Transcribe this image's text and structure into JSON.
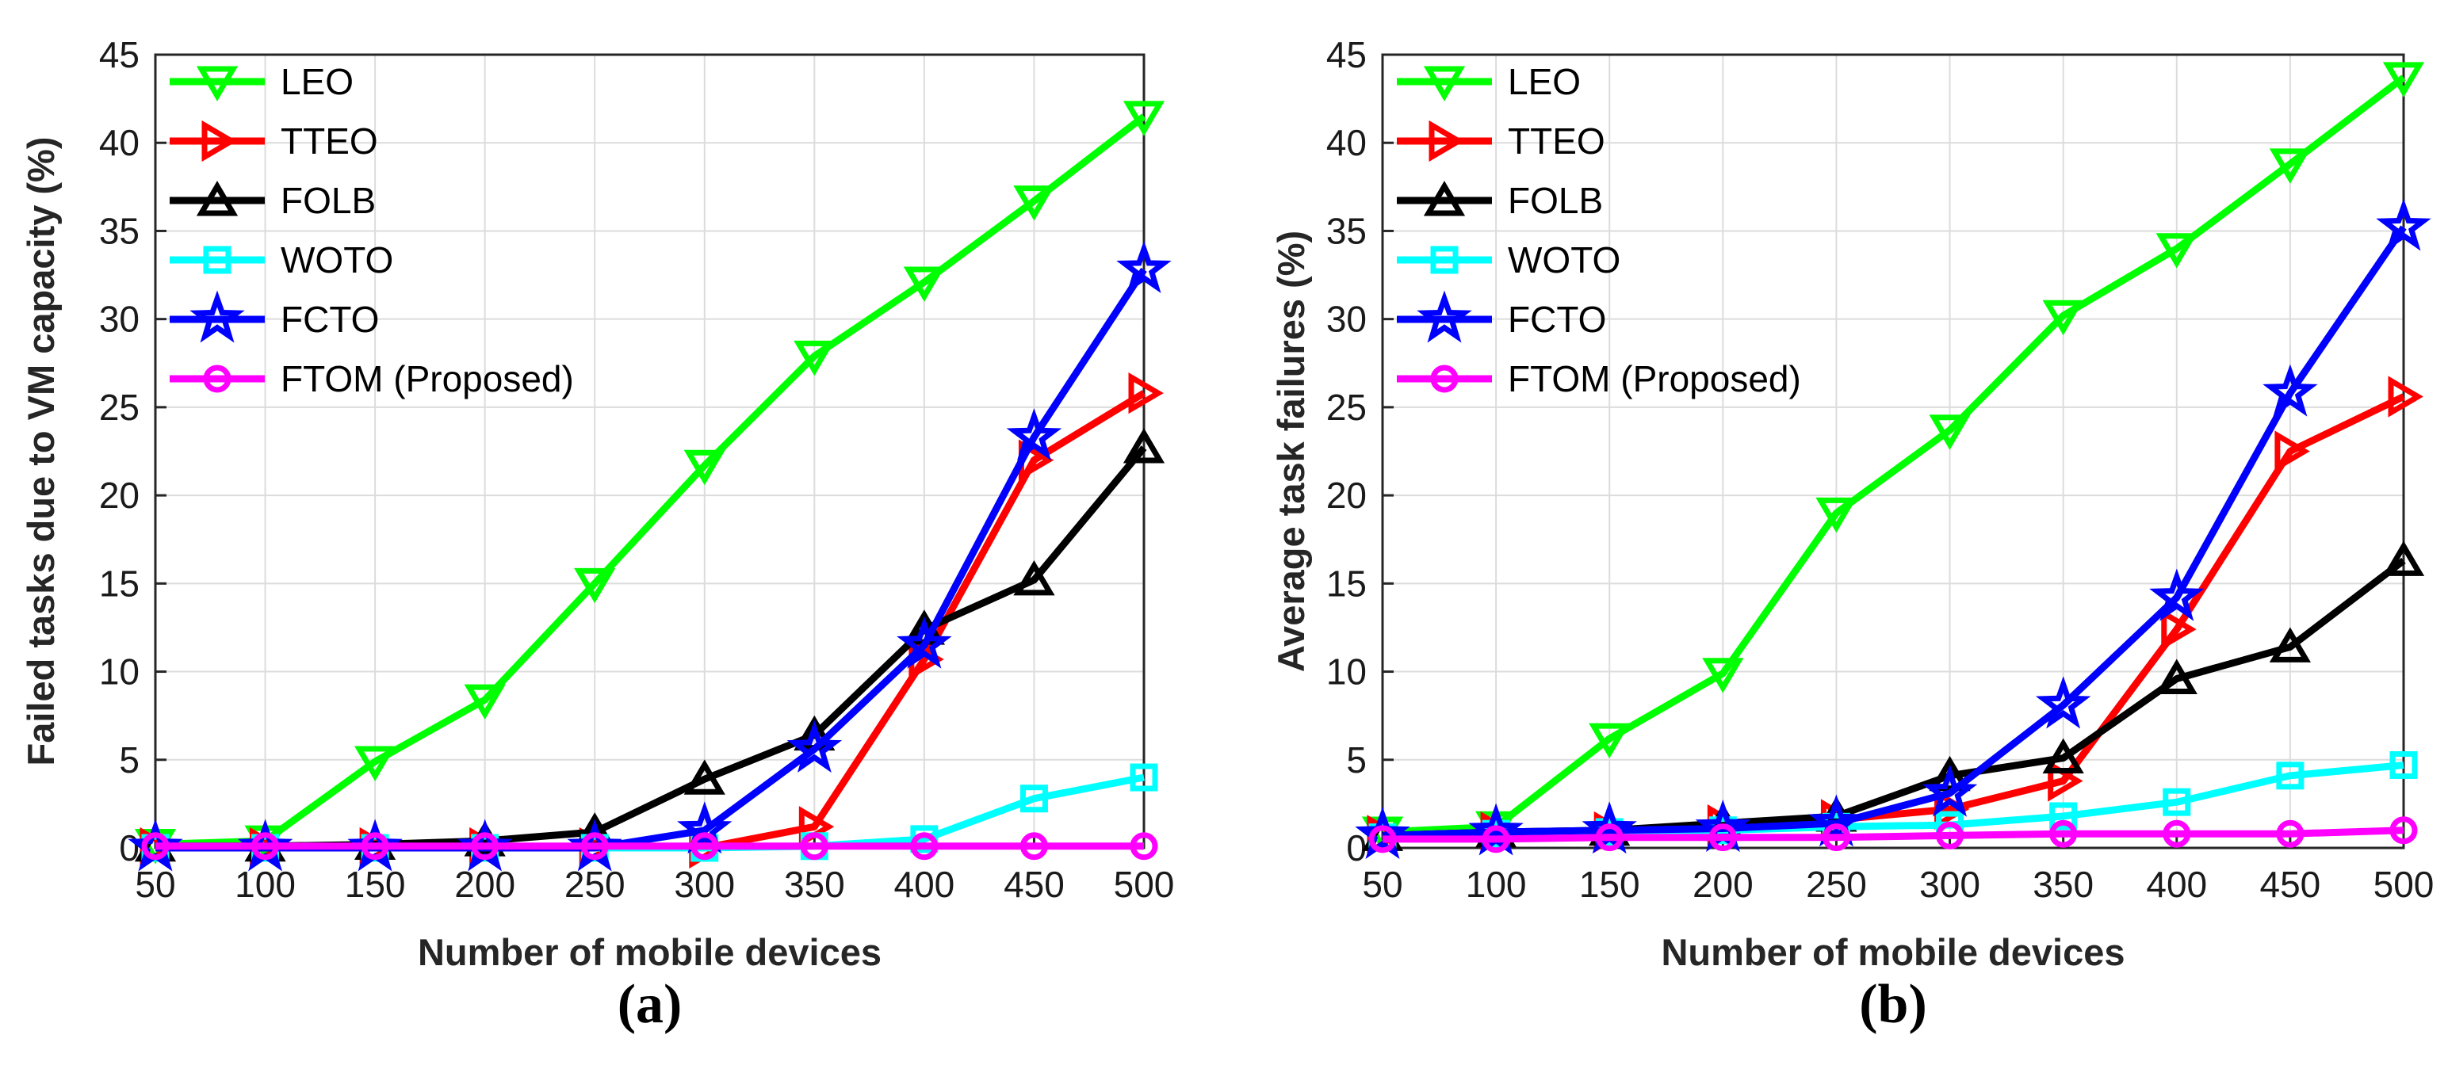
{
  "chart_data": [
    {
      "type": "line",
      "panel_label": "(a)",
      "xlabel": "Number of mobile devices",
      "ylabel": "Failed tasks due to VM capacity (%)",
      "x": [
        50,
        100,
        150,
        200,
        250,
        300,
        350,
        400,
        450,
        500
      ],
      "xticks": [
        "50",
        "100",
        "150",
        "200",
        "250",
        "300",
        "350",
        "400",
        "450",
        "500"
      ],
      "yticks": [
        "0",
        "5",
        "10",
        "15",
        "20",
        "25",
        "30",
        "35",
        "40",
        "45"
      ],
      "ylim": [
        0,
        45
      ],
      "grid": true,
      "legend_position": "top-left",
      "series": [
        {
          "name": "LEO",
          "color": "#00ff00",
          "marker": "triangle-down",
          "values": [
            0.2,
            0.4,
            4.9,
            8.4,
            15.0,
            21.7,
            27.9,
            32.1,
            36.7,
            41.5
          ]
        },
        {
          "name": "TTEO",
          "color": "#ff0000",
          "marker": "triangle-right",
          "values": [
            0.0,
            0.0,
            0.0,
            0.0,
            0.0,
            0.0,
            1.2,
            10.7,
            22.0,
            25.8
          ]
        },
        {
          "name": "FOLB",
          "color": "#000000",
          "marker": "triangle-up",
          "values": [
            0.1,
            0.1,
            0.2,
            0.4,
            0.9,
            3.9,
            6.4,
            12.4,
            15.2,
            22.7
          ]
        },
        {
          "name": "WOTO",
          "color": "#00ffff",
          "marker": "square",
          "values": [
            0.0,
            0.0,
            0.0,
            0.0,
            0.0,
            0.0,
            0.1,
            0.5,
            2.8,
            4.0
          ]
        },
        {
          "name": "FCTO",
          "color": "#0000ff",
          "marker": "star",
          "values": [
            0.0,
            0.0,
            0.0,
            0.0,
            0.0,
            1.0,
            5.6,
            11.5,
            23.3,
            32.8
          ]
        },
        {
          "name": "FTOM (Proposed)",
          "color": "#ff00ff",
          "marker": "circle",
          "values": [
            0.1,
            0.1,
            0.1,
            0.1,
            0.1,
            0.1,
            0.1,
            0.1,
            0.1,
            0.1
          ]
        }
      ]
    },
    {
      "type": "line",
      "panel_label": "(b)",
      "xlabel": "Number of mobile devices",
      "ylabel": "Average task failures (%)",
      "x": [
        50,
        100,
        150,
        200,
        250,
        300,
        350,
        400,
        450,
        500
      ],
      "xticks": [
        "50",
        "100",
        "150",
        "200",
        "250",
        "300",
        "350",
        "400",
        "450",
        "500"
      ],
      "yticks": [
        "0",
        "5",
        "10",
        "15",
        "20",
        "25",
        "30",
        "35",
        "40",
        "45"
      ],
      "ylim": [
        0,
        45
      ],
      "grid": true,
      "legend_position": "top-left",
      "series": [
        {
          "name": "LEO",
          "color": "#00ff00",
          "marker": "triangle-down",
          "values": [
            0.9,
            1.2,
            6.2,
            9.9,
            19.0,
            23.7,
            30.2,
            34.0,
            38.8,
            43.7
          ]
        },
        {
          "name": "TTEO",
          "color": "#ff0000",
          "marker": "triangle-right",
          "values": [
            0.7,
            0.9,
            0.9,
            1.3,
            1.6,
            2.2,
            3.8,
            12.4,
            22.5,
            25.6
          ]
        },
        {
          "name": "FOLB",
          "color": "#000000",
          "marker": "triangle-up",
          "values": [
            0.7,
            0.9,
            1.0,
            1.4,
            1.8,
            4.1,
            5.1,
            9.6,
            11.4,
            16.3
          ]
        },
        {
          "name": "WOTO",
          "color": "#00ffff",
          "marker": "square",
          "values": [
            0.6,
            0.8,
            0.9,
            1.0,
            1.2,
            1.3,
            1.8,
            2.6,
            4.1,
            4.7
          ]
        },
        {
          "name": "FCTO",
          "color": "#0000ff",
          "marker": "star",
          "values": [
            0.7,
            0.9,
            1.0,
            1.1,
            1.4,
            3.1,
            8.1,
            14.2,
            25.8,
            35.2
          ]
        },
        {
          "name": "FTOM (Proposed)",
          "color": "#ff00ff",
          "marker": "circle",
          "values": [
            0.5,
            0.5,
            0.6,
            0.6,
            0.6,
            0.7,
            0.8,
            0.8,
            0.8,
            1.0
          ]
        }
      ]
    }
  ]
}
